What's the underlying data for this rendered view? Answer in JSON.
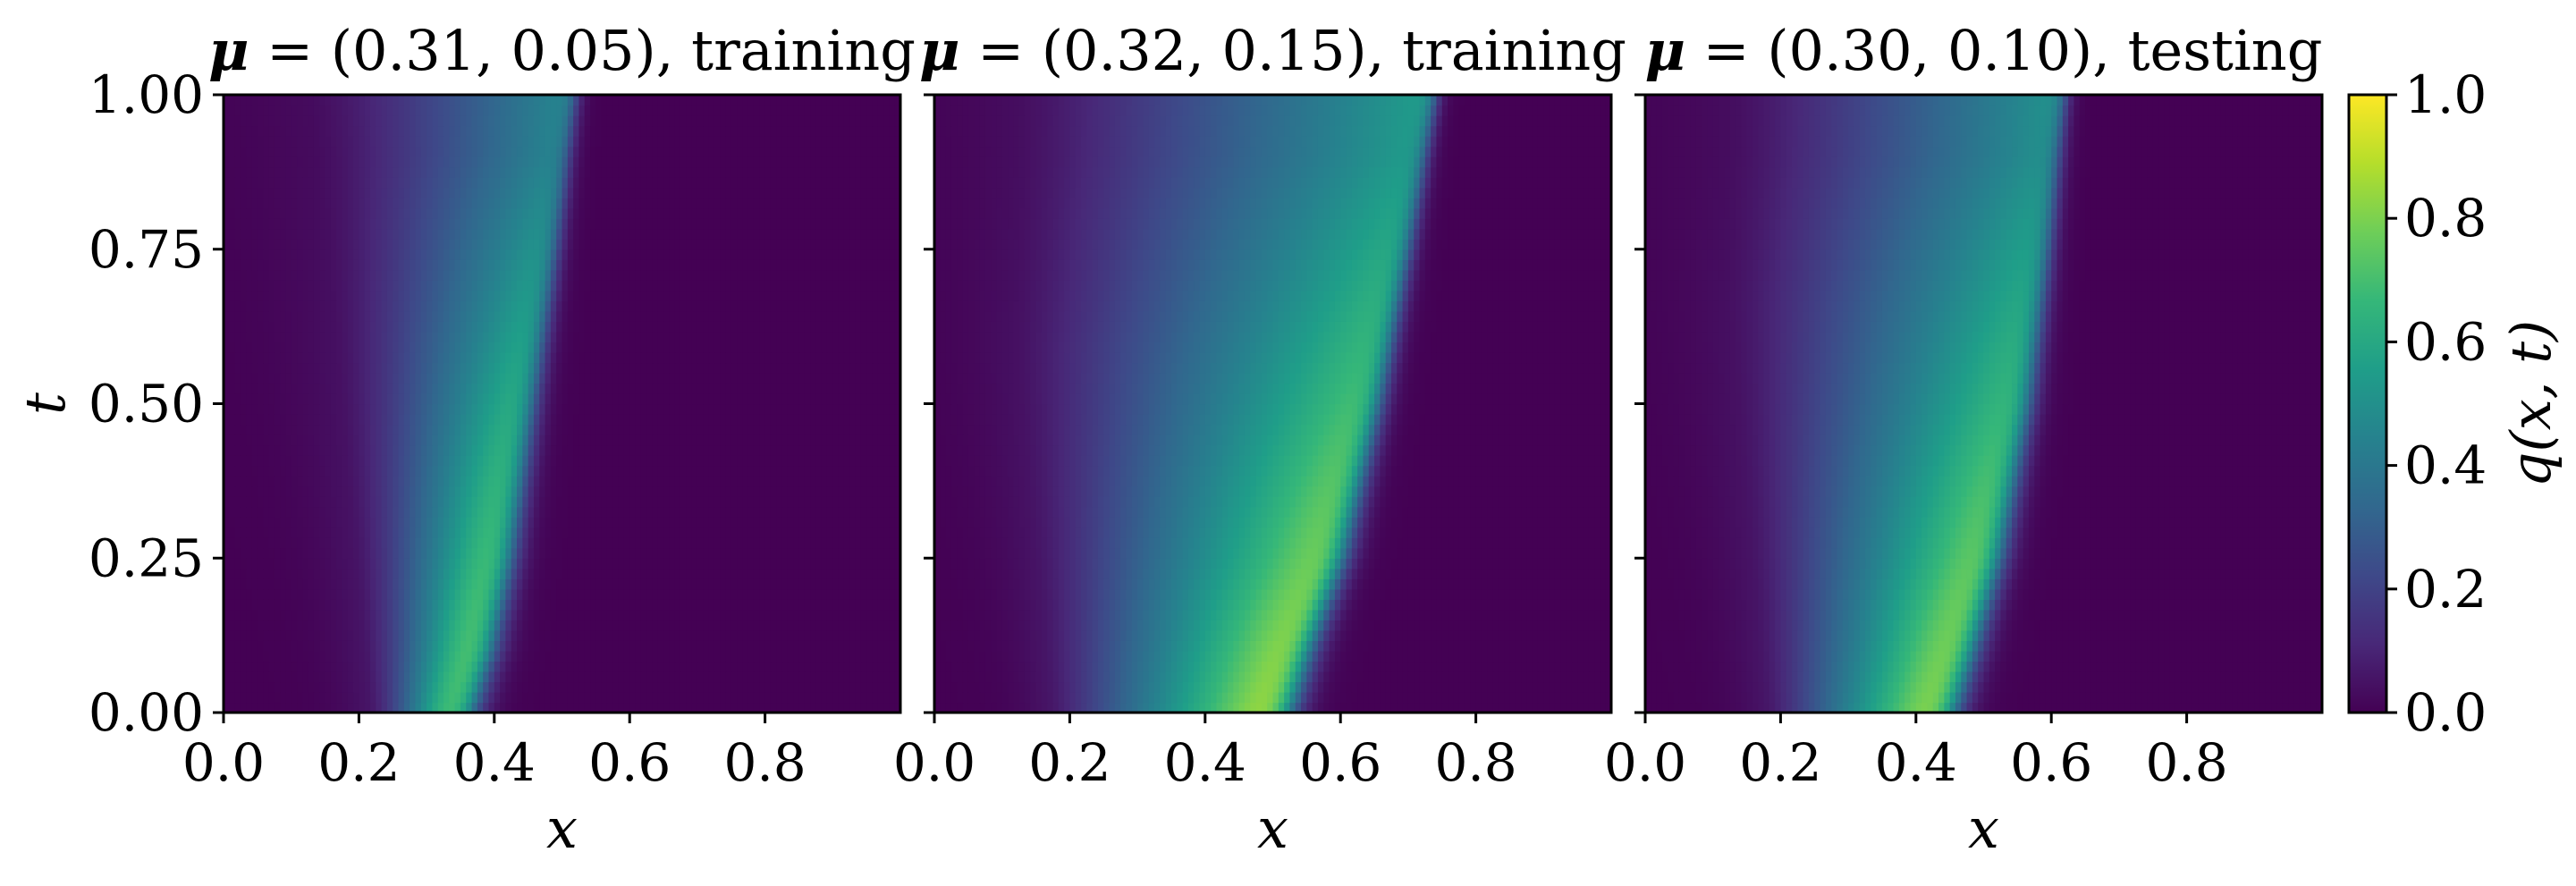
{
  "chart_data": [
    {
      "type": "heatmap",
      "title_symbol": "μ",
      "title": "= (0.31, 0.05), training",
      "mu": [
        0.31,
        0.05
      ],
      "split": "training",
      "xlabel": "x",
      "ylabel": "t",
      "xlim": [
        0,
        1
      ],
      "ylim": [
        0,
        1
      ],
      "xticks": [
        "0.0",
        "0.2",
        "0.4",
        "0.6",
        "0.8"
      ],
      "yticks": [
        "0.00",
        "0.25",
        "0.50",
        "0.75",
        "1.00"
      ],
      "shock_front_x": [
        {
          "t": 0.0,
          "x": 0.36
        },
        {
          "t": 0.1,
          "x": 0.39
        },
        {
          "t": 0.25,
          "x": 0.42
        },
        {
          "t": 0.5,
          "x": 0.455
        },
        {
          "t": 0.75,
          "x": 0.49
        },
        {
          "t": 1.0,
          "x": 0.52
        }
      ]
    },
    {
      "type": "heatmap",
      "title_symbol": "μ",
      "title": "= (0.32, 0.15), training",
      "mu": [
        0.32,
        0.15
      ],
      "split": "training",
      "xlabel": "x",
      "xlim": [
        0,
        1
      ],
      "ylim": [
        0,
        1
      ],
      "xticks": [
        "0.0",
        "0.2",
        "0.4",
        "0.6",
        "0.8"
      ],
      "shock_front_x": [
        {
          "t": 0.0,
          "x": 0.52
        },
        {
          "t": 0.1,
          "x": 0.55
        },
        {
          "t": 0.25,
          "x": 0.6
        },
        {
          "t": 0.5,
          "x": 0.655
        },
        {
          "t": 0.75,
          "x": 0.7
        },
        {
          "t": 1.0,
          "x": 0.74
        }
      ]
    },
    {
      "type": "heatmap",
      "title_symbol": "μ",
      "title": "= (0.30, 0.10), testing",
      "mu": [
        0.3,
        0.1
      ],
      "split": "testing",
      "xlabel": "x",
      "xlim": [
        0,
        1
      ],
      "ylim": [
        0,
        1
      ],
      "xticks": [
        "0.0",
        "0.2",
        "0.4",
        "0.6",
        "0.8"
      ],
      "shock_front_x": [
        {
          "t": 0.0,
          "x": 0.45
        },
        {
          "t": 0.1,
          "x": 0.48
        },
        {
          "t": 0.25,
          "x": 0.52
        },
        {
          "t": 0.5,
          "x": 0.565
        },
        {
          "t": 0.75,
          "x": 0.595
        },
        {
          "t": 1.0,
          "x": 0.62
        }
      ]
    }
  ],
  "colorbar": {
    "label": "q(x, t)",
    "colormap": "viridis",
    "range": [
      0.0,
      1.0
    ],
    "ticks": [
      "0.0",
      "0.2",
      "0.4",
      "0.6",
      "0.8",
      "1.0"
    ]
  }
}
